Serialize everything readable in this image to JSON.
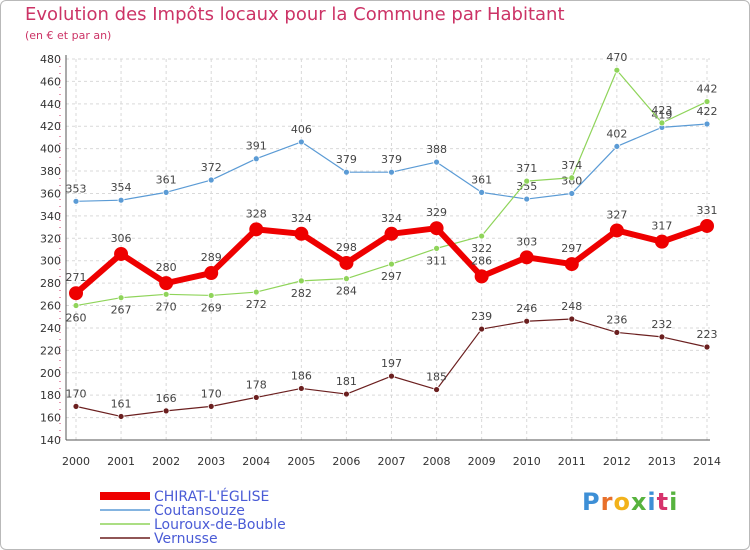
{
  "header": {
    "title": "Evolution des Impôts locaux pour la Commune par Habitant",
    "subtitle": "(en € et par an)"
  },
  "logo": {
    "letters": [
      "P",
      "r",
      "o",
      "x",
      "i",
      "t",
      "i"
    ],
    "colors": [
      "#3d8fd6",
      "#e8702a",
      "#f2b21b",
      "#57b33e",
      "#3d8fd6",
      "#d6336c",
      "#57b33e"
    ]
  },
  "chart_data": {
    "type": "line",
    "title": "Evolution des Impôts locaux pour la Commune par Habitant",
    "subtitle": "(en € et par an)",
    "x": [
      "2000",
      "2001",
      "2002",
      "2003",
      "2004",
      "2005",
      "2006",
      "2007",
      "2008",
      "2009",
      "2010",
      "2011",
      "2012",
      "2013",
      "2014"
    ],
    "ylim": [
      140,
      480
    ],
    "yticks": [
      140,
      160,
      180,
      200,
      220,
      240,
      260,
      280,
      300,
      320,
      340,
      360,
      380,
      400,
      420,
      440,
      460,
      480
    ],
    "grid": true,
    "legend": "bottom-left",
    "series": [
      {
        "name": "Coutansouze",
        "color": "#5b9bd5",
        "values": [
          353,
          354,
          361,
          372,
          391,
          406,
          379,
          379,
          388,
          361,
          355,
          360,
          402,
          419,
          422
        ]
      },
      {
        "name": "Louroux-de-Bouble",
        "color": "#8fd45a",
        "values": [
          260,
          267,
          270,
          269,
          272,
          282,
          284,
          297,
          311,
          322,
          371,
          374,
          470,
          423,
          442
        ]
      },
      {
        "name": "Vernusse",
        "color": "#6b1f1f",
        "values": [
          170,
          161,
          166,
          170,
          178,
          186,
          181,
          197,
          185,
          239,
          246,
          248,
          236,
          232,
          223
        ]
      },
      {
        "name": "CHIRAT-L'ÉGLISE",
        "color": "#ee0000",
        "values": [
          271,
          306,
          280,
          289,
          328,
          324,
          298,
          324,
          329,
          286,
          303,
          297,
          327,
          317,
          331
        ]
      }
    ]
  }
}
